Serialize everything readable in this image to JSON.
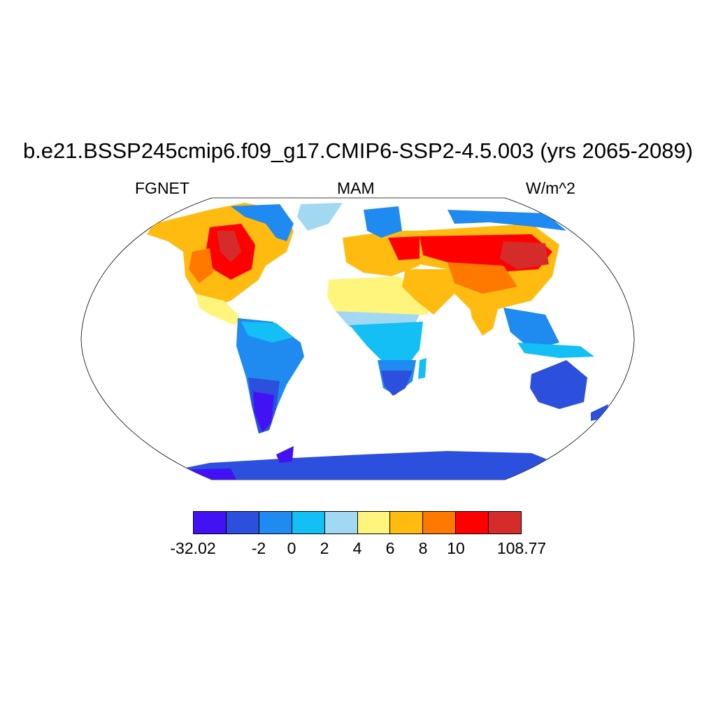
{
  "title": "b.e21.BSSP245cmip6.f09_g17.CMIP6-SSP2-4.5.003 (yrs 2065-2089)",
  "left_label": "FGNET",
  "center_label": "MAM",
  "right_label": "W/m^2",
  "legend": {
    "colors": [
      "#4212f5",
      "#2c4fdd",
      "#1f8bf0",
      "#13bff5",
      "#a3d8f2",
      "#fff57d",
      "#ffbb10",
      "#ff7800",
      "#ff0000",
      "#d62b2b"
    ],
    "tick_labels": [
      "-32.02",
      "-2",
      "0",
      "2",
      "4",
      "6",
      "8",
      "10",
      "108.77"
    ]
  },
  "map": {
    "projection": "Robinson",
    "ocean_color": "#ffffff",
    "coastline_color": "#000000"
  }
}
